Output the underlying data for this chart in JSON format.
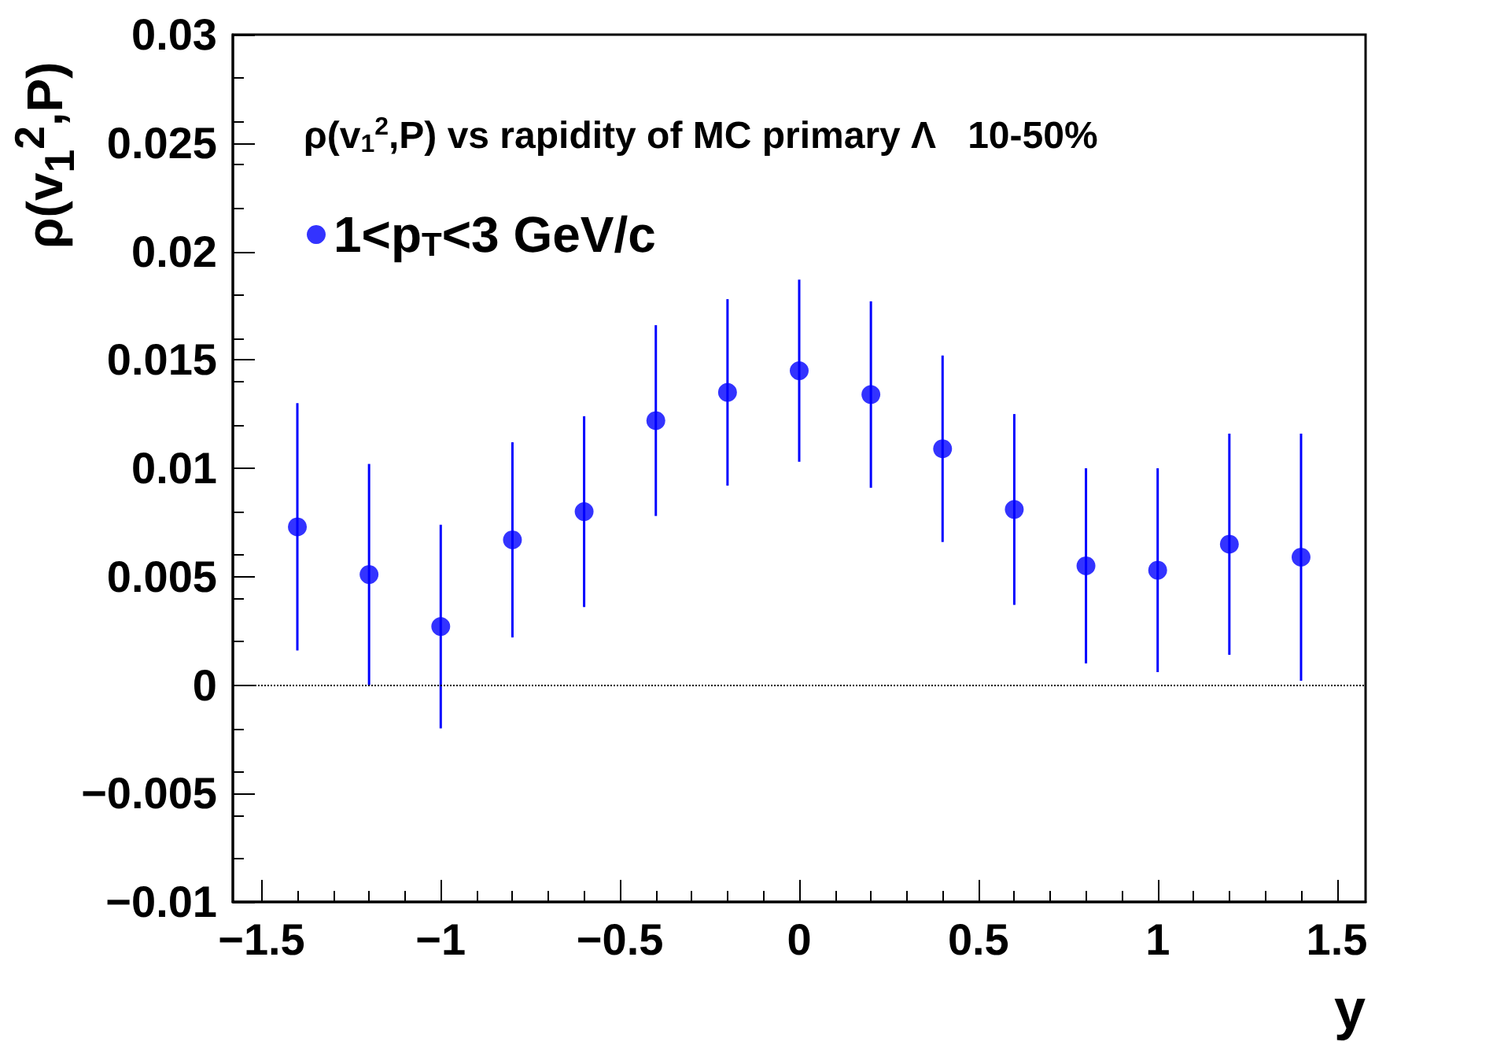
{
  "chart_data": {
    "type": "scatter",
    "title": "ρ(v$_{1}$$^{2}$,P) vs rapidity of MC primary Λ   10-50%",
    "xlabel": "y",
    "ylabel": "ρ(v$_{1}$$^{2}$,P)",
    "x": [
      -1.4,
      -1.2,
      -1.0,
      -0.8,
      -0.6,
      -0.4,
      -0.2,
      0,
      0.2,
      0.4,
      0.6,
      0.8,
      1.0,
      1.2,
      1.4
    ],
    "series": [
      {
        "name": "1<p$_{T}$<3 GeV/c",
        "color": "#0000ff",
        "values": [
          0.0073,
          0.0051,
          0.0027,
          0.0067,
          0.008,
          0.0122,
          0.0135,
          0.0145,
          0.0134,
          0.0109,
          0.0081,
          0.0055,
          0.0053,
          0.0065,
          0.0059
        ],
        "errors": [
          0.0057,
          0.0051,
          0.0047,
          0.0045,
          0.0044,
          0.0044,
          0.0043,
          0.0042,
          0.0043,
          0.0043,
          0.0044,
          0.0045,
          0.0047,
          0.0051,
          0.0057
        ]
      }
    ],
    "xlim": [
      -1.58,
      1.58
    ],
    "xticks": [
      -1.5,
      -1,
      -0.5,
      0,
      0.5,
      1,
      1.5
    ],
    "ylim": [
      -0.01,
      0.03
    ],
    "yticks": [
      -0.01,
      -0.005,
      0,
      0.005,
      0.01,
      0.015,
      0.02,
      0.025,
      0.03
    ],
    "ref_lines": [
      {
        "axis": "y",
        "value": 0,
        "color": "#000000",
        "line_style": "dotted"
      }
    ],
    "marker": "circle",
    "legend": "top left",
    "grid": false
  }
}
